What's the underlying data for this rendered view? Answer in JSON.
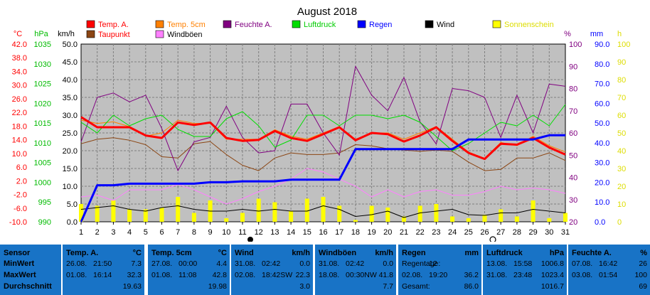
{
  "chart_data": {
    "type": "line",
    "title": "August 2018",
    "x": [
      1,
      2,
      3,
      4,
      5,
      6,
      7,
      8,
      9,
      10,
      11,
      12,
      13,
      14,
      15,
      16,
      17,
      18,
      19,
      20,
      21,
      22,
      23,
      24,
      25,
      26,
      27,
      28,
      29,
      30,
      31
    ],
    "axes": {
      "temp": {
        "unit": "°C",
        "color": "#ff0000",
        "range": [
          -10,
          46
        ],
        "ticks": [
          "42.0",
          "38.0",
          "34.0",
          "30.0",
          "26.0",
          "22.0",
          "18.0",
          "14.0",
          "10.0",
          "6.0",
          "2.0",
          "-2.0",
          "-6.0",
          "-10.0"
        ]
      },
      "pressure": {
        "unit": "hPa",
        "color": "#00bb00",
        "range": [
          990,
          1040
        ],
        "ticks": [
          "1035",
          "1030",
          "1025",
          "1020",
          "1015",
          "1010",
          "1005",
          "1000",
          "995",
          "990"
        ]
      },
      "wind": {
        "unit": "km/h",
        "color": "#000000",
        "range": [
          0,
          50
        ],
        "ticks": [
          "50.0",
          "45.0",
          "40.0",
          "35.0",
          "30.0",
          "25.0",
          "20.0",
          "15.0",
          "10.0",
          "5.0",
          "0.0"
        ]
      },
      "humidity": {
        "unit": "%",
        "color": "#800080",
        "range": [
          20,
          100
        ],
        "ticks": [
          "100",
          "90",
          "80",
          "70",
          "60",
          "50",
          "40",
          "30",
          "20"
        ]
      },
      "rain": {
        "unit": "mm",
        "color": "#0000ff",
        "range": [
          0,
          90
        ],
        "ticks": [
          "90.0",
          "80.0",
          "70.0",
          "60.0",
          "50.0",
          "40.0",
          "30.0",
          "20.0",
          "10.0",
          "0.0"
        ]
      },
      "sun": {
        "unit": "h",
        "color": "#dddd00",
        "range": [
          0,
          100
        ],
        "ticks": [
          "100",
          "90",
          "80",
          "70",
          "60",
          "50",
          "40",
          "30",
          "20",
          "10",
          "0"
        ]
      }
    },
    "legend": [
      {
        "name": "Temp. A.",
        "color": "#ff0000"
      },
      {
        "name": "Temp. 5cm",
        "color": "#ff8000"
      },
      {
        "name": "Feuchte A.",
        "color": "#800080"
      },
      {
        "name": "Luftdruck",
        "color": "#00dd00"
      },
      {
        "name": "Regen",
        "color": "#0000ff"
      },
      {
        "name": "Wind",
        "color": "#000000"
      },
      {
        "name": "Sonnenschein",
        "color": "#ffff00"
      },
      {
        "name": "Taupunkt",
        "color": "#8b4513"
      },
      {
        "name": "Windböen",
        "color": "#ff80ff"
      }
    ],
    "series": [
      {
        "name": "Temp. A.",
        "axis": "temp",
        "color": "#ff0000",
        "width": 3,
        "values": [
          23,
          19.8,
          19.8,
          19.8,
          17.2,
          16.4,
          21.3,
          20.5,
          21.3,
          16.4,
          15.5,
          15.8,
          18.6,
          16.4,
          15.5,
          17.6,
          19.8,
          15.7,
          18,
          17.6,
          15.3,
          17.2,
          19.8,
          15.5,
          11.7,
          9.8,
          14.6,
          14.3,
          16.4,
          13.4,
          11.2
        ]
      },
      {
        "name": "Temp. 5cm",
        "axis": "temp",
        "color": "#ff8000",
        "width": 1,
        "values": [
          22,
          21,
          21.5,
          20,
          17,
          18,
          22,
          21,
          21,
          16,
          16,
          16,
          19,
          17,
          16,
          18,
          20,
          16,
          18,
          18,
          16,
          18,
          20,
          16,
          12,
          10,
          15,
          14,
          17,
          14,
          12
        ]
      },
      {
        "name": "Taupunkt",
        "axis": "temp",
        "color": "#8b4513",
        "width": 1,
        "values": [
          14.6,
          16,
          16.5,
          15.7,
          14.3,
          10.5,
          10.1,
          14.6,
          15.3,
          11.2,
          7.8,
          6.1,
          10.1,
          11.7,
          11.2,
          11.2,
          11.7,
          14.3,
          13.9,
          13,
          12.6,
          12.2,
          12.6,
          12.2,
          8.8,
          6.1,
          6.5,
          10.1,
          10.1,
          11.7,
          9.3
        ]
      },
      {
        "name": "Feuchte A.",
        "axis": "humidity",
        "color": "#800080",
        "width": 1,
        "values": [
          56,
          76,
          78,
          74,
          77,
          62,
          43,
          56,
          58,
          72,
          58,
          51,
          52,
          73,
          73,
          60,
          50,
          90,
          77,
          70,
          85,
          65,
          55,
          80,
          79,
          76,
          58,
          77,
          60,
          82,
          81
        ]
      },
      {
        "name": "Luftdruck",
        "axis": "pressure",
        "color": "#00dd00",
        "width": 1,
        "values": [
          1018,
          1015,
          1020,
          1017,
          1019,
          1020,
          1016,
          1014,
          1014,
          1019,
          1021,
          1017,
          1011,
          1013,
          1020,
          1020,
          1017,
          1020,
          1020,
          1019,
          1020,
          1018,
          1014,
          1010,
          1012,
          1015,
          1018,
          1017,
          1020,
          1017,
          1023
        ]
      },
      {
        "name": "Regen",
        "axis": "rain",
        "color": "#0000ff",
        "width": 3,
        "values": [
          0,
          18.5,
          18.5,
          19.3,
          19.3,
          19.3,
          19.3,
          19.3,
          20,
          20,
          20.5,
          20.5,
          20.5,
          21.3,
          21.3,
          21.3,
          21.3,
          36.8,
          36.8,
          36.8,
          36.8,
          36.8,
          36.8,
          36.8,
          41.7,
          41.7,
          41.7,
          41.7,
          41.7,
          43.8,
          43.8
        ]
      },
      {
        "name": "Wind",
        "axis": "wind",
        "color": "#000000",
        "width": 1,
        "values": [
          3.5,
          4,
          4.5,
          3.5,
          3,
          4,
          4.5,
          3.5,
          3,
          3,
          3.5,
          3,
          3.5,
          3,
          3,
          4.5,
          3.5,
          1.5,
          2,
          3,
          1.2,
          2.5,
          3,
          3.5,
          2,
          1.8,
          2.5,
          2.5,
          3.5,
          3,
          2.5
        ]
      },
      {
        "name": "Windböen",
        "axis": "wind",
        "color": "#ff80ff",
        "width": 1,
        "values": [
          7,
          7.5,
          6,
          9,
          9,
          9,
          10.5,
          9,
          7,
          5,
          6.5,
          8.5,
          10,
          12,
          15,
          14,
          12,
          10,
          7,
          9,
          7,
          8.5,
          9,
          7.5,
          7.5,
          8.5,
          10,
          9,
          9.5,
          9,
          8
        ]
      },
      {
        "name": "Sonnenschein",
        "axis": "sun",
        "color": "#ffff00",
        "type": "bar",
        "values": [
          10,
          9,
          12,
          7,
          7,
          8,
          14,
          5,
          12,
          2,
          5,
          13,
          11,
          6,
          13,
          14,
          9,
          1,
          9,
          8,
          3,
          9,
          10,
          3,
          2,
          4,
          7,
          3,
          12,
          2,
          5
        ]
      }
    ]
  },
  "table": [
    {
      "title": "Sensor",
      "rows": [
        "MinWert",
        "MaxWert",
        "Durchschnitt"
      ]
    },
    {
      "title": "Temp. A.",
      "unit": "°C",
      "rows": [
        [
          "26.08.",
          "21:50",
          "7.3"
        ],
        [
          "01.08.",
          "16:14",
          "32.3"
        ],
        [
          "",
          "",
          "19.63"
        ]
      ]
    },
    {
      "title": "Temp. 5cm",
      "unit": "°C",
      "rows": [
        [
          "27.08.",
          "00:00",
          "4.4"
        ],
        [
          "01.08.",
          "11:08",
          "42.8"
        ],
        [
          "",
          "",
          "19.98"
        ]
      ]
    },
    {
      "title": "Wind",
      "unit": "km/h",
      "rows": [
        [
          "31.08.",
          "02:42",
          "0.0"
        ],
        [
          "02.08.",
          "18:42SW",
          "22.3"
        ],
        [
          "",
          "",
          "3.0"
        ]
      ]
    },
    {
      "title": "Windböen",
      "unit": "km/h",
      "rows": [
        [
          "31.08.",
          "02:42",
          "0.0"
        ],
        [
          "18.08.",
          "00:30NW",
          "41.8"
        ],
        [
          "",
          "",
          "7.7"
        ]
      ]
    },
    {
      "title": "Regen",
      "unit": "mm",
      "rows": [
        [
          "Regentage:",
          "12",
          ""
        ],
        [
          "02.08.",
          "19:20",
          "36.2"
        ],
        [
          "Gesamt:",
          "",
          "86.0"
        ]
      ]
    },
    {
      "title": "Luftdruck",
      "unit": "hPa",
      "rows": [
        [
          "13.08.",
          "15:58",
          "1006.8"
        ],
        [
          "31.08.",
          "23:48",
          "1023.4"
        ],
        [
          "",
          "",
          "1016.7"
        ]
      ]
    },
    {
      "title": "Feuchte A.",
      "unit": "%",
      "rows": [
        [
          "07.08.",
          "16:42",
          "26"
        ],
        [
          "03.08.",
          "01:54",
          "100"
        ],
        [
          "",
          "",
          "69"
        ]
      ]
    }
  ]
}
